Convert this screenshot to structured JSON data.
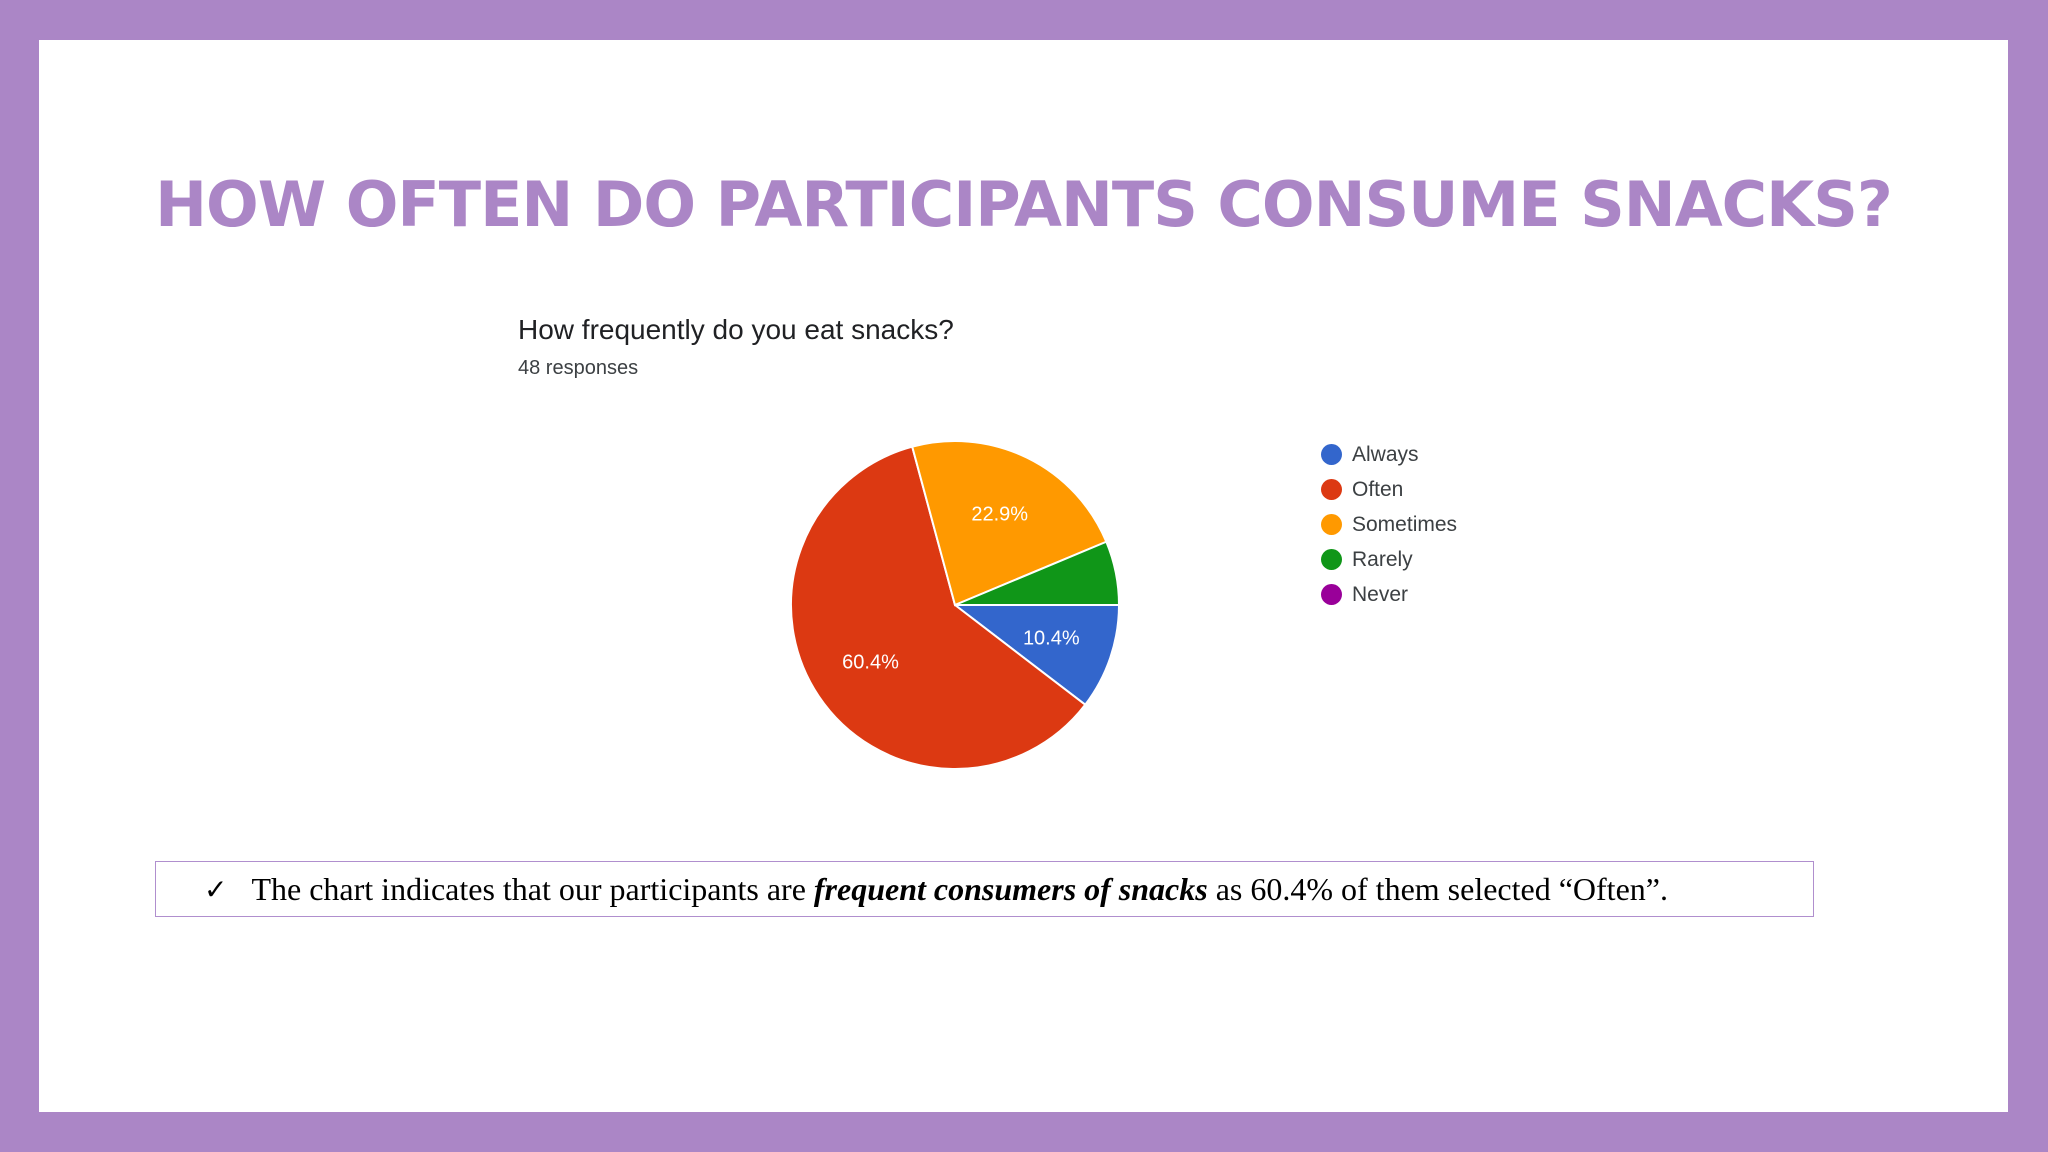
{
  "slide": {
    "title": "HOW OFTEN DO PARTICIPANTS CONSUME SNACKS?",
    "title_color": "#ab86c6",
    "frame_color": "#ab86c6"
  },
  "chart_data": {
    "type": "pie",
    "title": "How frequently do you eat snacks?",
    "subtitle": "48 responses",
    "categories": [
      "Always",
      "Often",
      "Sometimes",
      "Rarely",
      "Never"
    ],
    "values": [
      10.4,
      60.4,
      22.9,
      6.3,
      0.0
    ],
    "data_labels": [
      "10.4%",
      "60.4%",
      "22.9%",
      "",
      ""
    ],
    "colors": [
      "#3366cc",
      "#dc3912",
      "#ff9900",
      "#109618",
      "#990099"
    ],
    "legend_position": "right"
  },
  "note": {
    "check_glyph": "✓",
    "text_before": "The chart indicates that our participants are ",
    "emphasis": "frequent consumers of snacks",
    "text_after": " as 60.4% of them selected “Often”."
  }
}
